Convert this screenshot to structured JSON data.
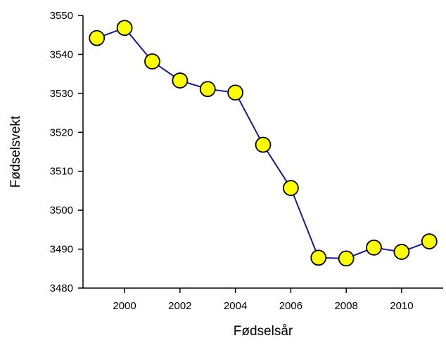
{
  "chart_data": {
    "type": "line",
    "title": "",
    "xlabel": "Fødselsår",
    "ylabel": "Fødselsvekt",
    "x": [
      1999,
      2000,
      2001,
      2002,
      2003,
      2004,
      2005,
      2006,
      2007,
      2008,
      2009,
      2010,
      2011
    ],
    "series": [
      {
        "values": [
          3544.2,
          3546.8,
          3538.2,
          3533.3,
          3531.1,
          3530.2,
          3516.8,
          3505.7,
          3487.8,
          3487.6,
          3490.4,
          3489.3,
          3492.0
        ]
      }
    ],
    "xlim": [
      1998.5,
      2011.5
    ],
    "ylim": [
      3480,
      3550
    ],
    "xticks": [
      2000,
      2002,
      2004,
      2006,
      2008,
      2010
    ],
    "yticks": [
      3480,
      3490,
      3500,
      3510,
      3520,
      3530,
      3540,
      3550
    ],
    "grid": false,
    "legend": "none",
    "line_color": "#1a1a8c",
    "marker_fill": "#ffff00",
    "marker_edge": "#000000"
  }
}
